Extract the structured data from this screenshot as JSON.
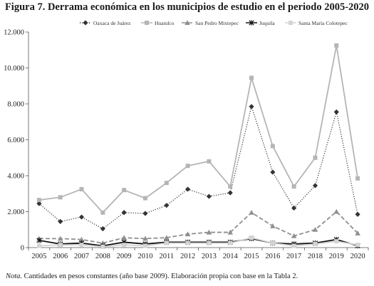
{
  "figure_title": "Figura 7. Derrama económica en los municipios de estudio en el periodo 2005-2020",
  "note": {
    "label": "Nota.",
    "text": " Cantidades en pesos constantes (año base 2009). Elaboración propia con base en la Tabla 2."
  },
  "chart_data": {
    "type": "line",
    "title": "",
    "xlabel": "",
    "ylabel": "",
    "x": [
      "2005",
      "2006",
      "2007",
      "2008",
      "2009",
      "2010",
      "2011",
      "2012",
      "2013",
      "2014",
      "2015",
      "2016",
      "2017",
      "2018",
      "2019",
      "2020"
    ],
    "ylim": [
      0,
      12000
    ],
    "yticks": [
      0,
      2000,
      4000,
      6000,
      8000,
      10000,
      12000
    ],
    "ytick_labels": [
      "0",
      "2.000",
      "4.000",
      "6.000",
      "8.000",
      "10.000",
      "12.000"
    ],
    "grid": "none",
    "legend_position": "top",
    "series": [
      {
        "name": "Oaxaca de Juárez",
        "color": "#333333",
        "line": "dotted",
        "marker": "diamond",
        "values": [
          2450,
          1450,
          1700,
          1050,
          1950,
          1900,
          2350,
          3250,
          2850,
          3050,
          7850,
          4200,
          2200,
          3450,
          7550,
          1850
        ]
      },
      {
        "name": "Huatulco",
        "color": "#b5b5b5",
        "line": "solid",
        "marker": "square",
        "values": [
          2650,
          2800,
          3250,
          1950,
          3200,
          2750,
          3600,
          4550,
          4800,
          3400,
          9450,
          5650,
          3400,
          5000,
          11250,
          3850
        ]
      },
      {
        "name": "San Pedro Mixtepec",
        "color": "#8f8f8f",
        "line": "dashed",
        "marker": "triangle",
        "values": [
          500,
          500,
          450,
          250,
          550,
          500,
          550,
          750,
          850,
          850,
          1950,
          1200,
          650,
          1000,
          2000,
          800
        ]
      },
      {
        "name": "Juquila",
        "color": "#111111",
        "line": "solid",
        "marker": "star",
        "values": [
          400,
          200,
          250,
          100,
          300,
          200,
          300,
          300,
          300,
          300,
          500,
          250,
          200,
          250,
          450,
          100
        ]
      },
      {
        "name": "Santa María Colotepec",
        "color": "#d4d4d4",
        "line": "solid",
        "marker": "square",
        "values": [
          100,
          150,
          150,
          50,
          150,
          100,
          250,
          250,
          250,
          250,
          550,
          250,
          100,
          200,
          350,
          150
        ]
      }
    ]
  }
}
